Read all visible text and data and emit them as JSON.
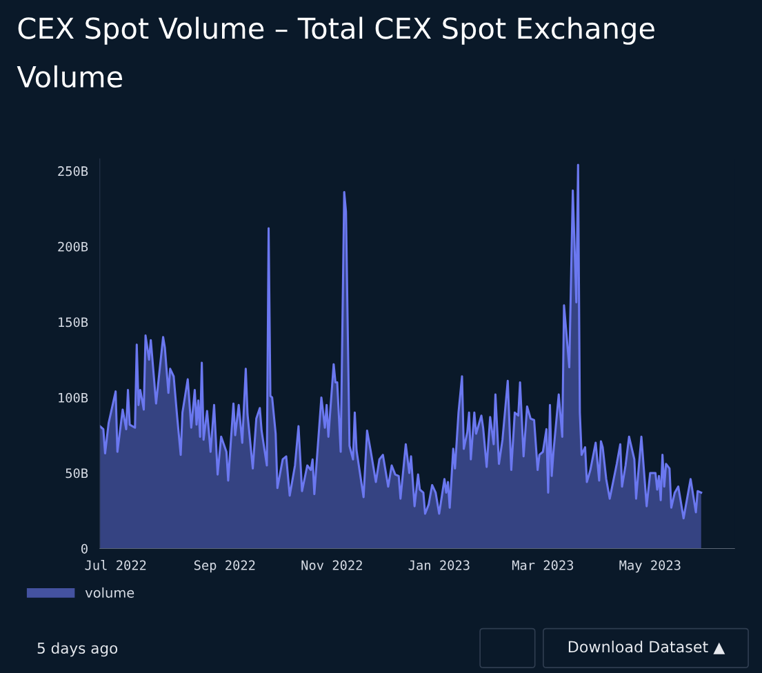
{
  "chart_data": {
    "type": "area",
    "title": "CEX Spot Volume – Total CEX Spot Exchange Volume",
    "x": [
      "2022-06-22",
      "2022-06-24",
      "2022-06-25",
      "2022-06-27",
      "2022-07-01",
      "2022-07-02",
      "2022-07-05",
      "2022-07-07",
      "2022-07-08",
      "2022-07-09",
      "2022-07-12",
      "2022-07-13",
      "2022-07-14",
      "2022-07-15",
      "2022-07-17",
      "2022-07-18",
      "2022-07-20",
      "2022-07-21",
      "2022-07-24",
      "2022-07-28",
      "2022-07-29",
      "2022-07-31",
      "2022-08-01",
      "2022-08-03",
      "2022-08-05",
      "2022-08-07",
      "2022-08-08",
      "2022-08-11",
      "2022-08-13",
      "2022-08-15",
      "2022-08-16",
      "2022-08-17",
      "2022-08-18",
      "2022-08-19",
      "2022-08-20",
      "2022-08-22",
      "2022-08-24",
      "2022-08-26",
      "2022-08-28",
      "2022-08-30",
      "2022-09-02",
      "2022-09-03",
      "2022-09-06",
      "2022-09-07",
      "2022-09-09",
      "2022-09-11",
      "2022-09-13",
      "2022-09-14",
      "2022-09-17",
      "2022-09-19",
      "2022-09-21",
      "2022-09-22",
      "2022-09-25",
      "2022-09-26",
      "2022-09-27",
      "2022-09-28",
      "2022-09-30",
      "2022-10-01",
      "2022-10-04",
      "2022-10-06",
      "2022-10-08",
      "2022-10-11",
      "2022-10-13",
      "2022-10-15",
      "2022-10-18",
      "2022-10-20",
      "2022-10-21",
      "2022-10-22",
      "2022-10-26",
      "2022-10-28",
      "2022-10-29",
      "2022-10-30",
      "2022-11-02",
      "2022-11-03",
      "2022-11-04",
      "2022-11-06",
      "2022-11-08",
      "2022-11-09",
      "2022-11-11",
      "2022-11-13",
      "2022-11-14",
      "2022-11-15",
      "2022-11-19",
      "2022-11-21",
      "2022-11-23",
      "2022-11-26",
      "2022-11-28",
      "2022-11-30",
      "2022-12-03",
      "2022-12-05",
      "2022-12-07",
      "2022-12-09",
      "2022-12-10",
      "2022-12-13",
      "2022-12-15",
      "2022-12-16",
      "2022-12-18",
      "2022-12-20",
      "2022-12-21",
      "2022-12-23",
      "2022-12-24",
      "2022-12-26",
      "2022-12-28",
      "2022-12-30",
      "2023-01-01",
      "2023-01-04",
      "2023-01-05",
      "2023-01-06",
      "2023-01-07",
      "2023-01-09",
      "2023-01-10",
      "2023-01-12",
      "2023-01-14",
      "2023-01-15",
      "2023-01-17",
      "2023-01-18",
      "2023-01-19",
      "2023-01-21",
      "2023-01-22",
      "2023-01-25",
      "2023-01-26",
      "2023-01-28",
      "2023-01-30",
      "2023-02-01",
      "2023-02-02",
      "2023-02-04",
      "2023-02-06",
      "2023-02-09",
      "2023-02-11",
      "2023-02-13",
      "2023-02-15",
      "2023-02-16",
      "2023-02-18",
      "2023-02-20",
      "2023-02-22",
      "2023-02-24",
      "2023-02-26",
      "2023-02-27",
      "2023-03-01",
      "2023-03-03",
      "2023-03-04",
      "2023-03-05",
      "2023-03-06",
      "2023-03-07",
      "2023-03-10",
      "2023-03-12",
      "2023-03-13",
      "2023-03-16",
      "2023-03-18",
      "2023-03-20",
      "2023-03-21",
      "2023-03-22",
      "2023-03-23",
      "2023-03-25",
      "2023-03-26",
      "2023-03-28",
      "2023-03-31",
      "2023-04-02",
      "2023-04-03",
      "2023-04-04",
      "2023-04-06",
      "2023-04-08",
      "2023-04-12",
      "2023-04-14",
      "2023-04-15",
      "2023-04-17",
      "2023-04-19",
      "2023-04-22",
      "2023-04-23",
      "2023-04-26",
      "2023-04-29",
      "2023-05-01",
      "2023-05-04",
      "2023-05-05",
      "2023-05-06",
      "2023-05-07",
      "2023-05-08",
      "2023-05-09",
      "2023-05-10",
      "2023-05-12",
      "2023-05-13",
      "2023-05-15",
      "2023-05-17",
      "2023-05-20",
      "2023-05-24",
      "2023-05-27",
      "2023-05-28",
      "2023-05-30"
    ],
    "series": [
      {
        "name": "volume",
        "color": "#6b78f0",
        "values": [
          81,
          79,
          63,
          83,
          104,
          64,
          92,
          79,
          105,
          82,
          80,
          135,
          95,
          105,
          92,
          141,
          125,
          138,
          96,
          140,
          133,
          103,
          119,
          114,
          87,
          62,
          90,
          112,
          80,
          105,
          82,
          98,
          74,
          123,
          72,
          91,
          64,
          95,
          49,
          74,
          64,
          45,
          96,
          75,
          95,
          70,
          119,
          89,
          53,
          86,
          93,
          78,
          55,
          212,
          101,
          100,
          76,
          40,
          59,
          61,
          35,
          55,
          81,
          38,
          55,
          52,
          59,
          36,
          100,
          80,
          95,
          74,
          122,
          110,
          110,
          64,
          236,
          223,
          68,
          59,
          90,
          65,
          34,
          78,
          65,
          44,
          59,
          62,
          41,
          55,
          49,
          48,
          33,
          69,
          50,
          61,
          28,
          49,
          39,
          37,
          23,
          29,
          42,
          37,
          23,
          46,
          37,
          44,
          27,
          66,
          53,
          90,
          114,
          66,
          77,
          90,
          59,
          90,
          76,
          88,
          80,
          54,
          87,
          69,
          102,
          56,
          72,
          111,
          52,
          90,
          88,
          110,
          61,
          94,
          86,
          85,
          52,
          62,
          64,
          79,
          37,
          95,
          48,
          64,
          102,
          74,
          161,
          120,
          237,
          163,
          254,
          90,
          62,
          67,
          44,
          52,
          70,
          45,
          71,
          67,
          46,
          33,
          56,
          69,
          41,
          55,
          74,
          59,
          33,
          74,
          28,
          50,
          50,
          39,
          48,
          32,
          62,
          41,
          56,
          53,
          27,
          37,
          41,
          20,
          46,
          24,
          38,
          37
        ]
      }
    ],
    "xlim": [
      "2022-06-22",
      "2023-06-18"
    ],
    "xticks": [
      {
        "value": "2022-07-01",
        "label": "Jul 2022"
      },
      {
        "value": "2022-09-01",
        "label": "Sep 2022"
      },
      {
        "value": "2022-11-01",
        "label": "Nov 2022"
      },
      {
        "value": "2023-01-01",
        "label": "Jan 2023"
      },
      {
        "value": "2023-03-01",
        "label": "Mar 2023"
      },
      {
        "value": "2023-05-01",
        "label": "May 2023"
      }
    ],
    "ylim": [
      0,
      258
    ],
    "yticks": [
      {
        "value": 0,
        "label": "0"
      },
      {
        "value": 50,
        "label": "50B"
      },
      {
        "value": 100,
        "label": "100B"
      },
      {
        "value": 150,
        "label": "150B"
      },
      {
        "value": 200,
        "label": "200B"
      },
      {
        "value": 250,
        "label": "250B"
      }
    ],
    "grid": false,
    "legend": "bottom left",
    "annotations": [
      "5 days ago",
      "Download Dataset ▲"
    ]
  }
}
